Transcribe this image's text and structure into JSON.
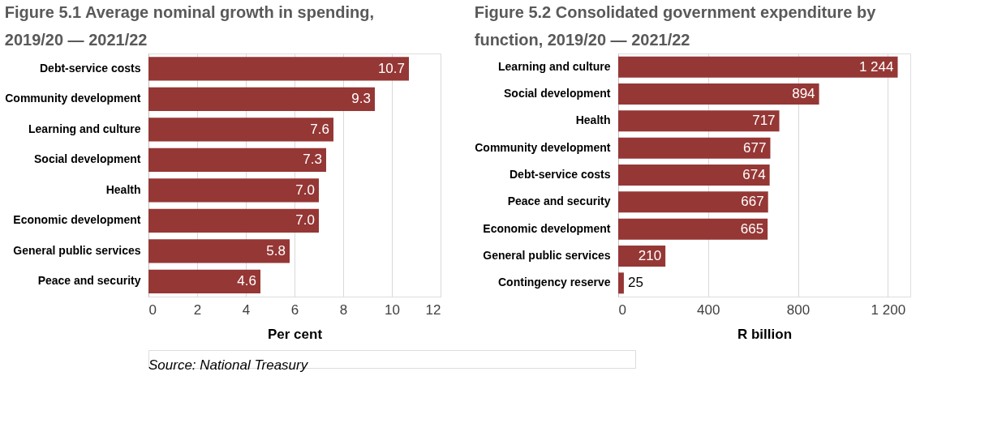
{
  "chart_data": [
    {
      "type": "bar",
      "orientation": "horizontal",
      "title": "Figure 5.1 Average nominal growth in spending, 2019/20 — 2021/22",
      "xlabel": "Per cent",
      "categories": [
        "Debt-service costs",
        "Community development",
        "Learning and culture",
        "Social development",
        "Health",
        "Economic development",
        "General public services",
        "Peace and security"
      ],
      "values": [
        10.7,
        9.3,
        7.6,
        7.3,
        7.0,
        7.0,
        5.8,
        4.6
      ],
      "value_labels": [
        "10.7",
        "9.3",
        "7.6",
        "7.3",
        "7.0",
        "7.0",
        "5.8",
        "4.6"
      ],
      "color": "#953735",
      "xlim": [
        0,
        12
      ],
      "xticks": [
        0,
        2,
        4,
        6,
        8,
        10,
        12
      ],
      "grid": "x",
      "legend": false,
      "annotations": [
        "Source: National Treasury"
      ]
    },
    {
      "type": "bar",
      "orientation": "horizontal",
      "title": "Figure 5.2 Consolidated government expenditure by function, 2019/20 — 2021/22",
      "xlabel": "R billion",
      "categories": [
        "Learning and culture",
        "Social development",
        "Health",
        "Community development",
        "Debt-service costs",
        "Peace and security",
        "Economic development",
        "General public services",
        "Contingency reserve"
      ],
      "values": [
        1244,
        894,
        717,
        677,
        674,
        667,
        665,
        210,
        25
      ],
      "value_labels": [
        "1 244",
        "894",
        "717",
        "677",
        "674",
        "667",
        "665",
        "210",
        "25"
      ],
      "color": "#953735",
      "xlim": [
        0,
        1300
      ],
      "xticks": [
        0,
        400,
        800,
        {
          "value": 1200,
          "label": "1 200"
        }
      ],
      "grid": "x",
      "legend": false
    }
  ]
}
